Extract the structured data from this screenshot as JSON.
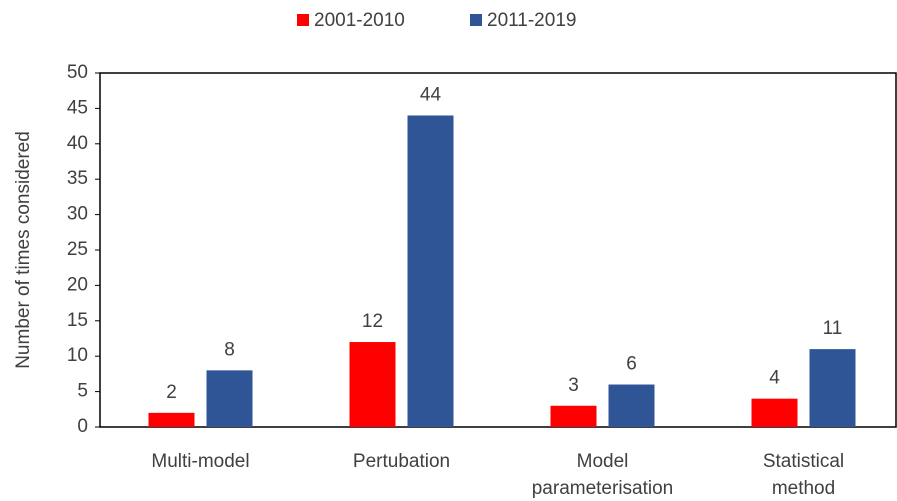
{
  "chart_data": {
    "type": "bar",
    "categories": [
      "Multi-model",
      "Pertubation",
      "Model parameterisation",
      "Statistical method"
    ],
    "series": [
      {
        "name": "2001-2010",
        "color": "#ff0000",
        "values": [
          2,
          12,
          3,
          4
        ]
      },
      {
        "name": "2011-2019",
        "color": "#2f5597",
        "values": [
          8,
          44,
          6,
          11
        ]
      }
    ],
    "y_label": "Number  of times considered",
    "ylim": [
      0,
      50
    ],
    "yticks": [
      0,
      5,
      10,
      15,
      20,
      25,
      30,
      35,
      40,
      45,
      50
    ],
    "legend": "top"
  }
}
